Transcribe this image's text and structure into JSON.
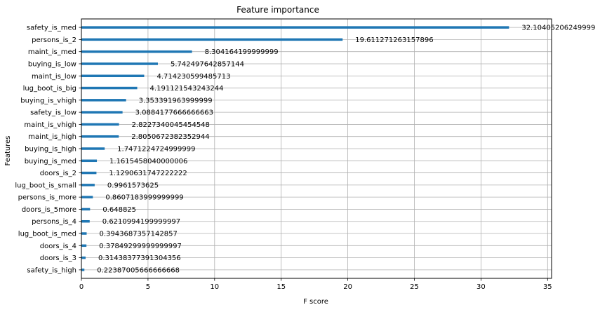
{
  "chart_data": {
    "type": "bar",
    "orientation": "horizontal",
    "title": "Feature importance",
    "xlabel": "F score",
    "ylabel": "Features",
    "xlim": [
      0,
      35.3
    ],
    "xticks": [
      0,
      5,
      10,
      15,
      20,
      25,
      30,
      35
    ],
    "grid": true,
    "bar_color": "#1f77b4",
    "categories": [
      "safety_is_high",
      "doors_is_3",
      "doors_is_4",
      "lug_boot_is_med",
      "persons_is_4",
      "doors_is_5more",
      "persons_is_more",
      "lug_boot_is_small",
      "doors_is_2",
      "buying_is_med",
      "buying_is_high",
      "maint_is_high",
      "maint_is_vhigh",
      "safety_is_low",
      "buying_is_vhigh",
      "lug_boot_is_big",
      "maint_is_low",
      "buying_is_low",
      "maint_is_med",
      "persons_is_2",
      "safety_is_med"
    ],
    "values": [
      0.22387005666666668,
      0.31438377391304356,
      0.37849299999999997,
      0.3943687357142857,
      0.6210994199999997,
      0.648825,
      0.8607183999999999,
      0.9961573625,
      1.1290631747222222,
      1.1615458040000006,
      1.7471224724999999,
      2.8050672382352944,
      2.8227340045454548,
      3.0884177666666663,
      3.353391963999999,
      4.191121543243244,
      4.714230599485713,
      5.742497642857144,
      8.304164199999999,
      19.611271263157896,
      32.10405206249999
    ],
    "value_labels": [
      "0.22387005666666668",
      "0.31438377391304356",
      "0.37849299999999997",
      "0.3943687357142857",
      "0.6210994199999997",
      "0.648825",
      "0.8607183999999999",
      "0.9961573625",
      "1.1290631747222222",
      "1.1615458040000006",
      "1.7471224724999999",
      "2.8050672382352944",
      "2.8227340045454548",
      "3.0884177666666663",
      "3.353391963999999",
      "4.191121543243244",
      "4.714230599485713",
      "5.742497642857144",
      "8.304164199999999",
      "19.611271263157896",
      "32.10405206249999"
    ]
  }
}
